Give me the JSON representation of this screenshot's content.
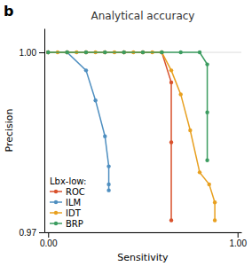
{
  "chart_data": {
    "type": "line",
    "title": "Analytical accuracy",
    "annotations": [
      "b"
    ],
    "xlabel": "Sensitivity",
    "ylabel": "Precision",
    "xlim": [
      -0.02,
      1.02
    ],
    "ylim": [
      0.97,
      1.004
    ],
    "xticks": [
      {
        "value": 0,
        "label": "0.00"
      },
      {
        "value": 1,
        "label": "1.00"
      }
    ],
    "yticks": [
      0.97,
      {
        "value": 1,
        "label": "1.00"
      }
    ],
    "grid": true,
    "legend": "lower left",
    "legend_title": "Lbx-low:",
    "marker": "circle",
    "series": [
      {
        "name": "ROC",
        "color": "#d9512c",
        "x": [
          0.0,
          0.1,
          0.2,
          0.3,
          0.4,
          0.5,
          0.6,
          0.65,
          0.65,
          0.65
        ],
        "values": [
          1.0,
          1.0,
          1.0,
          1.0,
          1.0,
          1.0,
          1.0,
          0.995,
          0.985,
          0.972
        ]
      },
      {
        "name": "ILM",
        "color": "#4f8fc0",
        "x": [
          0.0,
          0.1,
          0.2,
          0.25,
          0.3,
          0.32,
          0.32,
          0.32
        ],
        "values": [
          1.0,
          1.0,
          0.997,
          0.992,
          0.986,
          0.981,
          0.978,
          0.977
        ]
      },
      {
        "name": "IDT",
        "color": "#e8a020",
        "x": [
          0.0,
          0.05,
          0.1,
          0.15,
          0.2,
          0.25,
          0.3,
          0.35,
          0.4,
          0.45,
          0.5,
          0.55,
          0.6,
          0.65,
          0.7,
          0.75,
          0.8,
          0.85,
          0.88,
          0.88
        ],
        "values": [
          1.0,
          1.0,
          1.0,
          1.0,
          1.0,
          1.0,
          1.0,
          1.0,
          1.0,
          1.0,
          1.0,
          1.0,
          1.0,
          0.997,
          0.993,
          0.987,
          0.98,
          0.978,
          0.975,
          0.972
        ]
      },
      {
        "name": "BRP",
        "color": "#3c9c60",
        "x": [
          0.0,
          0.1,
          0.2,
          0.3,
          0.4,
          0.5,
          0.6,
          0.7,
          0.8,
          0.84,
          0.84,
          0.84
        ],
        "values": [
          1.0,
          1.0,
          1.0,
          1.0,
          1.0,
          1.0,
          1.0,
          1.0,
          1.0,
          0.998,
          0.99,
          0.982
        ]
      }
    ]
  }
}
